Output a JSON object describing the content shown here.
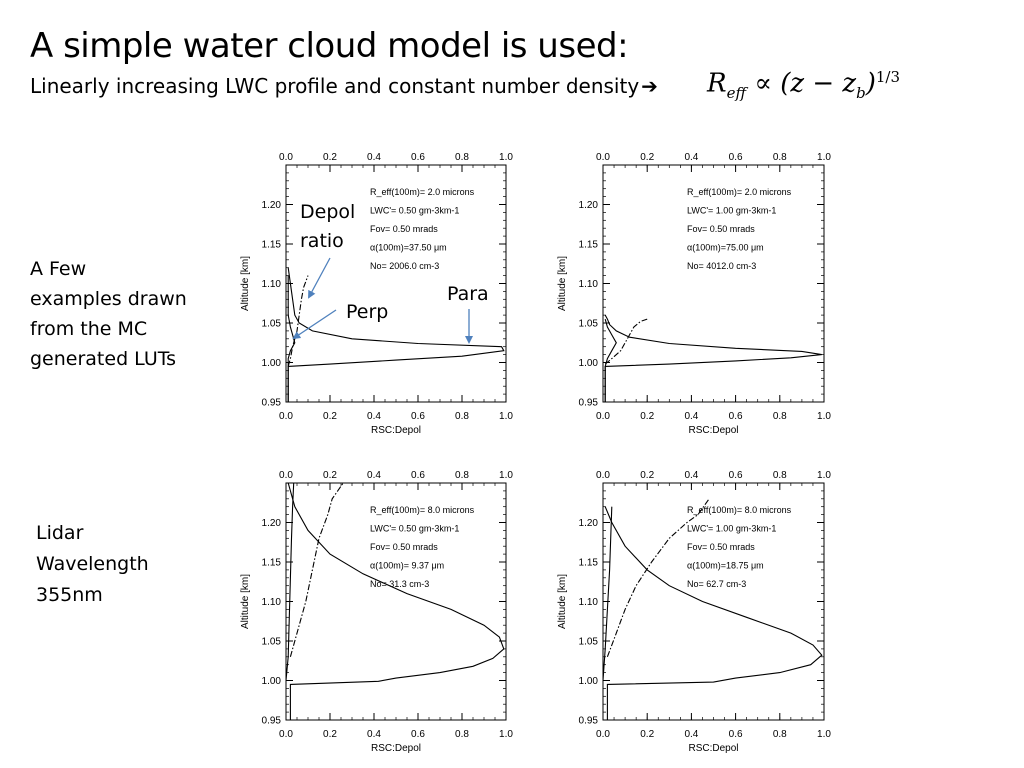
{
  "slide": {
    "title": "A simple water cloud model is used:",
    "subtitle": "Linearly increasing LWC profile and constant number density",
    "subtitle_arrow": "➔",
    "formula": {
      "lhs": "R",
      "lhs_sub": "eff",
      "relation": "∝",
      "rhs_open": "(z − z",
      "rhs_sub": "b",
      "rhs_close": ")",
      "exponent": "1/3"
    },
    "side_note_1": [
      "A Few",
      "examples drawn",
      "from the MC",
      "generated LUTs"
    ],
    "side_note_2": [
      "Lidar",
      "Wavelength",
      "355nm"
    ]
  },
  "callouts": {
    "depol": [
      "Depol",
      "ratio"
    ],
    "perp": "Perp",
    "para": "Para",
    "arrow_color": "#4f81bd"
  },
  "chart_data": [
    {
      "type": "line",
      "xlabel": "RSC:Depol",
      "ylabel": "Altitude [km]",
      "xlim": [
        0.0,
        1.0
      ],
      "ylim": [
        0.95,
        1.25
      ],
      "xticks": [
        "0.0",
        "0.2",
        "0.4",
        "0.6",
        "0.8",
        "1.0"
      ],
      "yticks": [
        "0.95",
        "1.00",
        "1.05",
        "1.10",
        "1.15",
        "1.20"
      ],
      "annotation": [
        "R_eff(100m)= 2.0 microns",
        "LWC'= 0.50 gm-3km-1",
        "Fov= 0.50 mrads",
        "α(100m)=37.50 μm",
        "No= 2006.0 cm-3"
      ],
      "series": [
        {
          "style": "solid",
          "x": [
            0.01,
            0.01,
            0.2,
            0.5,
            0.8,
            0.99,
            0.98,
            0.6,
            0.3,
            0.12,
            0.06,
            0.04,
            0.03,
            0.02,
            0.01
          ],
          "y": [
            0.95,
            0.995,
            0.998,
            1.003,
            1.008,
            1.015,
            1.02,
            1.024,
            1.03,
            1.04,
            1.05,
            1.06,
            1.08,
            1.1,
            1.12
          ]
        },
        {
          "style": "solid",
          "x": [
            0.01,
            0.01,
            0.01,
            0.02,
            0.04,
            0.03,
            0.02,
            0.01,
            0.01,
            0.01
          ],
          "y": [
            0.95,
            0.995,
            1.005,
            1.015,
            1.025,
            1.035,
            1.045,
            1.06,
            1.08,
            1.11
          ]
        },
        {
          "style": "dashdot",
          "x": [
            0.01,
            0.02,
            0.03,
            0.05,
            0.06,
            0.07,
            0.08,
            0.1
          ],
          "y": [
            0.995,
            1.005,
            1.02,
            1.04,
            1.06,
            1.08,
            1.095,
            1.11
          ]
        }
      ]
    },
    {
      "type": "line",
      "xlabel": "RSC:Depol",
      "ylabel": "Altitude [km]",
      "xlim": [
        0.0,
        1.0
      ],
      "ylim": [
        0.95,
        1.25
      ],
      "xticks": [
        "0.0",
        "0.2",
        "0.4",
        "0.6",
        "0.8",
        "1.0"
      ],
      "yticks": [
        "0.95",
        "1.00",
        "1.05",
        "1.10",
        "1.15",
        "1.20"
      ],
      "annotation": [
        "R_eff(100m)= 2.0 microns",
        "LWC'= 1.00 gm-3km-1",
        "Fov= 0.50 mrads",
        "α(100m)=75.00 μm",
        "No= 4012.0 cm-3"
      ],
      "series": [
        {
          "style": "solid",
          "x": [
            0.01,
            0.01,
            0.3,
            0.6,
            0.85,
            0.99,
            0.9,
            0.6,
            0.3,
            0.12,
            0.06,
            0.03,
            0.02,
            0.01
          ],
          "y": [
            0.95,
            0.995,
            0.998,
            1.002,
            1.006,
            1.01,
            1.014,
            1.018,
            1.024,
            1.032,
            1.04,
            1.048,
            1.055,
            1.06
          ]
        },
        {
          "style": "solid",
          "x": [
            0.01,
            0.01,
            0.02,
            0.04,
            0.06,
            0.04,
            0.02,
            0.01
          ],
          "y": [
            0.95,
            0.995,
            1.005,
            1.015,
            1.025,
            1.035,
            1.045,
            1.055
          ]
        },
        {
          "style": "dashdot",
          "x": [
            0.01,
            0.04,
            0.08,
            0.1,
            0.12,
            0.14,
            0.17,
            0.2
          ],
          "y": [
            0.998,
            1.005,
            1.015,
            1.025,
            1.035,
            1.045,
            1.052,
            1.055
          ]
        }
      ]
    },
    {
      "type": "line",
      "xlabel": "RSC:Depol",
      "ylabel": "Altitude [km]",
      "xlim": [
        0.0,
        1.0
      ],
      "ylim": [
        0.95,
        1.25
      ],
      "xticks": [
        "0.0",
        "0.2",
        "0.4",
        "0.6",
        "0.8",
        "1.0"
      ],
      "yticks": [
        "0.95",
        "1.00",
        "1.05",
        "1.10",
        "1.15",
        "1.20"
      ],
      "annotation": [
        "R_eff(100m)= 8.0 microns",
        "LWC'= 0.50 gm-3km-1",
        "Fov= 0.50 mrads",
        "α(100m)= 9.37 μm",
        "No= 31.3 cm-3"
      ],
      "series": [
        {
          "style": "solid",
          "x": [
            0.02,
            0.02,
            0.42,
            0.5,
            0.7,
            0.85,
            0.94,
            0.99,
            0.97,
            0.9,
            0.75,
            0.55,
            0.35,
            0.2,
            0.1,
            0.04,
            0.01
          ],
          "y": [
            0.95,
            0.995,
            0.999,
            1.003,
            1.01,
            1.018,
            1.028,
            1.04,
            1.055,
            1.07,
            1.09,
            1.11,
            1.135,
            1.16,
            1.19,
            1.22,
            1.25
          ]
        },
        {
          "style": "solid",
          "x": [
            0.0,
            0.01,
            0.015,
            0.02,
            0.025,
            0.03,
            0.035
          ],
          "y": [
            1.0,
            1.03,
            1.08,
            1.13,
            1.18,
            1.22,
            1.25
          ]
        },
        {
          "style": "dashdot",
          "x": [
            0.02,
            0.05,
            0.09,
            0.12,
            0.15,
            0.19,
            0.21,
            0.26
          ],
          "y": [
            1.03,
            1.06,
            1.1,
            1.14,
            1.18,
            1.21,
            1.23,
            1.25
          ]
        }
      ]
    },
    {
      "type": "line",
      "xlabel": "RSC:Depol",
      "ylabel": "Altitude [km]",
      "xlim": [
        0.0,
        1.0
      ],
      "ylim": [
        0.95,
        1.25
      ],
      "xticks": [
        "0.0",
        "0.2",
        "0.4",
        "0.6",
        "0.8",
        "1.0"
      ],
      "yticks": [
        "0.95",
        "1.00",
        "1.05",
        "1.10",
        "1.15",
        "1.20"
      ],
      "annotation": [
        "R_eff(100m)= 8.0 microns",
        "LWC'= 1.00 gm-3km-1",
        "Fov= 0.50 mrads",
        "α(100m)=18.75 μm",
        "No= 62.7 cm-3"
      ],
      "series": [
        {
          "style": "solid",
          "x": [
            0.02,
            0.02,
            0.5,
            0.6,
            0.8,
            0.94,
            0.99,
            0.95,
            0.85,
            0.65,
            0.45,
            0.3,
            0.2,
            0.1,
            0.04,
            0.01
          ],
          "y": [
            0.95,
            0.995,
            0.998,
            1.003,
            1.01,
            1.02,
            1.032,
            1.045,
            1.06,
            1.08,
            1.1,
            1.12,
            1.14,
            1.17,
            1.2,
            1.22
          ]
        },
        {
          "style": "solid",
          "x": [
            0.0,
            0.01,
            0.02,
            0.03,
            0.035,
            0.04
          ],
          "y": [
            1.0,
            1.04,
            1.09,
            1.14,
            1.18,
            1.22
          ]
        },
        {
          "style": "dashdot",
          "x": [
            0.02,
            0.06,
            0.1,
            0.15,
            0.22,
            0.3,
            0.38,
            0.43,
            0.48
          ],
          "y": [
            1.03,
            1.06,
            1.09,
            1.12,
            1.15,
            1.18,
            1.2,
            1.21,
            1.23
          ]
        }
      ]
    }
  ]
}
